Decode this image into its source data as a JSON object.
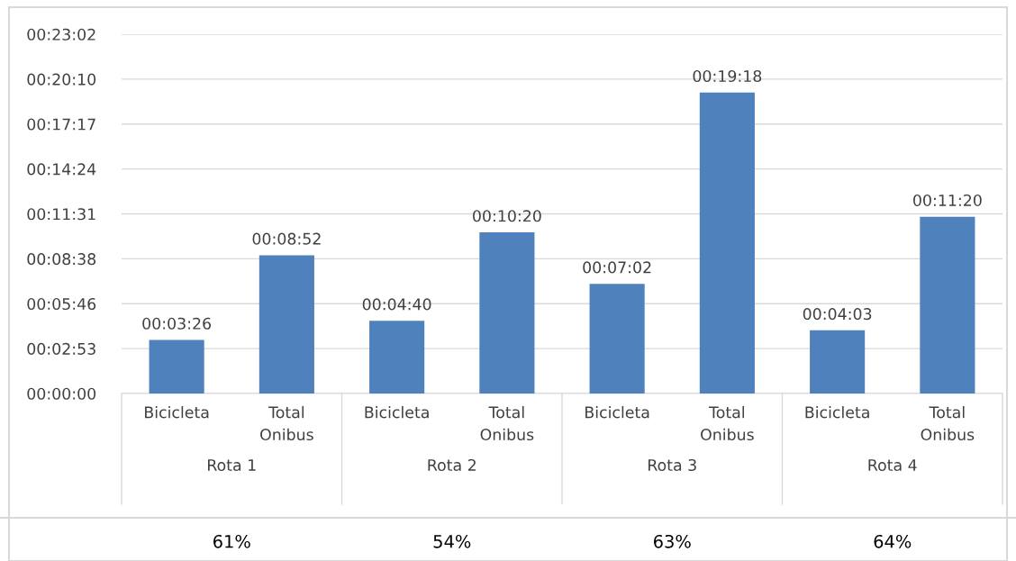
{
  "chart_data": {
    "type": "bar",
    "categories": [
      "Bicicleta",
      "Total\nOnibus",
      "Bicicleta",
      "Total\nOnibus",
      "Bicicleta",
      "Total\nOnibus",
      "Bicicleta",
      "Total\nOnibus"
    ],
    "values": [
      206,
      532,
      280,
      620,
      422,
      1158,
      243,
      680
    ],
    "value_labels": [
      "00:03:26",
      "00:08:52",
      "00:04:40",
      "00:10:20",
      "00:07:02",
      "00:19:18",
      "00:04:03",
      "00:11:20"
    ],
    "color": "#4f81bd",
    "ylim": [
      0,
      1382.4
    ],
    "yticks": [
      {
        "value": 0,
        "label": "00:00:00"
      },
      {
        "value": 172.8,
        "label": "00:02:53"
      },
      {
        "value": 345.6,
        "label": "00:05:46"
      },
      {
        "value": 518.4,
        "label": "00:08:38"
      },
      {
        "value": 691.2,
        "label": "00:11:31"
      },
      {
        "value": 864,
        "label": "00:14:24"
      },
      {
        "value": 1036.8,
        "label": "00:17:17"
      },
      {
        "value": 1209.6,
        "label": "00:20:10"
      },
      {
        "value": 1382.4,
        "label": "00:23:02"
      }
    ],
    "grid": "y",
    "annotations": [
      "Rota 1",
      "Rota 2",
      "Rota 3",
      "Rota 4",
      "61%",
      "54%",
      "63%",
      "64%"
    ]
  }
}
